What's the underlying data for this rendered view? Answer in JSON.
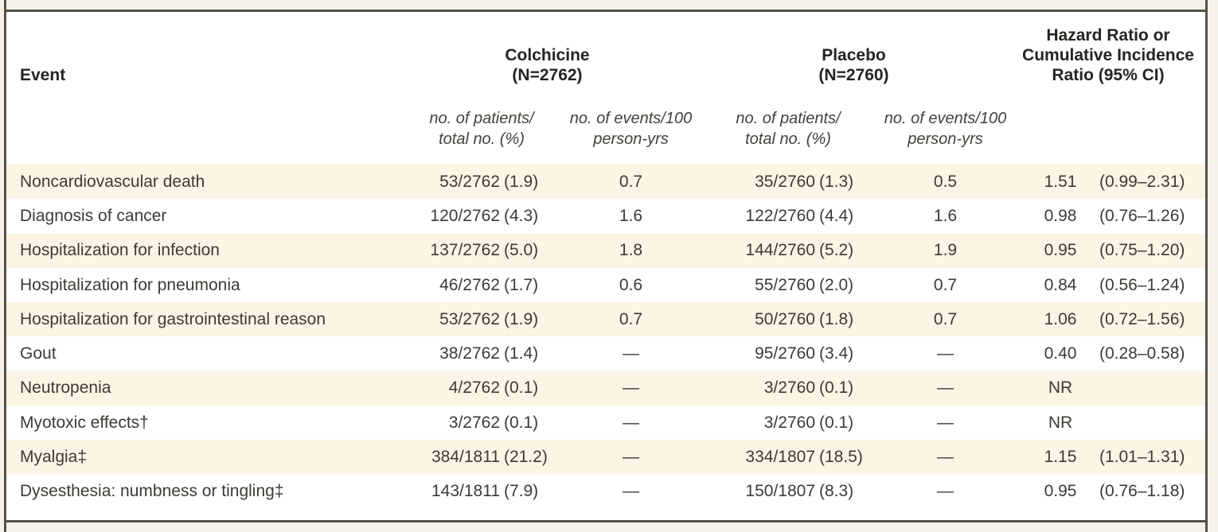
{
  "colors": {
    "stripe": "#fcf4e4",
    "frame_border": "#54524c",
    "body_text": "#3e3a34",
    "header_text": "#262420",
    "page_background": "#f6f2e8"
  },
  "table": {
    "header": {
      "event_label": "Event",
      "groups": [
        {
          "name": "Colchicine",
          "n": "(N=2762)"
        },
        {
          "name": "Placebo",
          "n": "(N=2760)"
        }
      ],
      "hazard_lines": [
        "Hazard Ratio or",
        "Cumulative Incidence",
        "Ratio (95% CI)"
      ],
      "subheaders": {
        "patients_line1": "no. of patients/",
        "patients_line2": "total no. (%)",
        "events_line1": "no. of events/100",
        "events_line2": "person-yrs"
      }
    },
    "rows": [
      {
        "event": "Noncardiovascular death",
        "colchicine_patients": "53/2762 (1.9)",
        "colchicine_rate": "0.7",
        "placebo_patients": "35/2760 (1.3)",
        "placebo_rate": "0.5",
        "ratio": "1.51 (0.99–2.31)"
      },
      {
        "event": "Diagnosis of cancer",
        "colchicine_patients": "120/2762 (4.3)",
        "colchicine_rate": "1.6",
        "placebo_patients": "122/2760 (4.4)",
        "placebo_rate": "1.6",
        "ratio": "0.98 (0.76–1.26)"
      },
      {
        "event": "Hospitalization for infection",
        "colchicine_patients": "137/2762 (5.0)",
        "colchicine_rate": "1.8",
        "placebo_patients": "144/2760 (5.2)",
        "placebo_rate": "1.9",
        "ratio": "0.95 (0.75–1.20)"
      },
      {
        "event": "Hospitalization for pneumonia",
        "colchicine_patients": "46/2762 (1.7)",
        "colchicine_rate": "0.6",
        "placebo_patients": "55/2760 (2.0)",
        "placebo_rate": "0.7",
        "ratio": "0.84 (0.56–1.24)"
      },
      {
        "event": "Hospitalization for gastrointestinal reason",
        "colchicine_patients": "53/2762 (1.9)",
        "colchicine_rate": "0.7",
        "placebo_patients": "50/2760 (1.8)",
        "placebo_rate": "0.7",
        "ratio": "1.06 (0.72–1.56)"
      },
      {
        "event": "Gout",
        "colchicine_patients": "38/2762 (1.4)",
        "colchicine_rate": "—",
        "placebo_patients": "95/2760 (3.4)",
        "placebo_rate": "—",
        "ratio": "0.40 (0.28–0.58)"
      },
      {
        "event": "Neutropenia",
        "colchicine_patients": "4/2762 (0.1)",
        "colchicine_rate": "—",
        "placebo_patients": "3/2760 (0.1)",
        "placebo_rate": "—",
        "ratio": "NR"
      },
      {
        "event": "Myotoxic effects†",
        "colchicine_patients": "3/2762 (0.1)",
        "colchicine_rate": "—",
        "placebo_patients": "3/2760 (0.1)",
        "placebo_rate": "—",
        "ratio": "NR"
      },
      {
        "event": "Myalgia‡",
        "colchicine_patients": "384/1811 (21.2)",
        "colchicine_rate": "—",
        "placebo_patients": "334/1807 (18.5)",
        "placebo_rate": "—",
        "ratio": "1.15 (1.01–1.31)"
      },
      {
        "event": "Dysesthesia: numbness or tingling‡",
        "colchicine_patients": "143/1811 (7.9)",
        "colchicine_rate": "—",
        "placebo_patients": "150/1807 (8.3)",
        "placebo_rate": "—",
        "ratio": "0.95 (0.76–1.18)"
      }
    ]
  }
}
